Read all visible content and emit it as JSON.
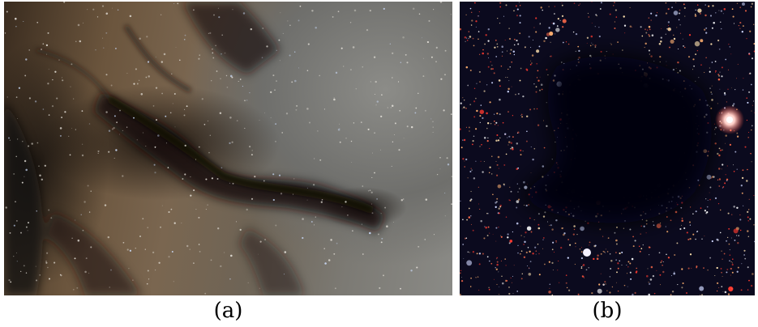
{
  "panels": [
    {
      "id": "a",
      "label": "(a)"
    },
    {
      "id": "b",
      "label": "(b)"
    }
  ],
  "colors": {
    "dust_dark": "#1a120c",
    "dust_brown": "#6b553d",
    "sky_gray": "#8a8a86",
    "star_field_bg": "#0b0a1e",
    "cloud_core": "#05030a"
  }
}
